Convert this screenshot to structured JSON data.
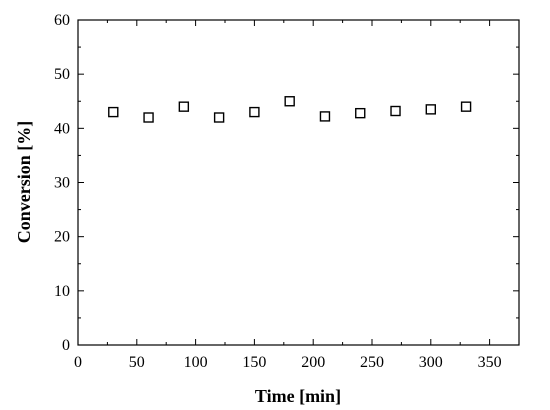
{
  "chart_data": {
    "type": "scatter",
    "title": "",
    "xlabel": "Time [min]",
    "ylabel": "Conversion [%]",
    "xlim": [
      0,
      375
    ],
    "ylim": [
      0,
      60
    ],
    "x_ticks": [
      0,
      50,
      100,
      150,
      200,
      250,
      300,
      350
    ],
    "y_ticks": [
      0,
      10,
      20,
      30,
      40,
      50,
      60
    ],
    "grid": false,
    "marker": "open-square",
    "marker_color": "#000000",
    "series": [
      {
        "x": [
          30,
          60,
          90,
          120,
          150,
          180,
          210,
          240,
          270,
          300,
          330
        ],
        "y": [
          43.0,
          42.0,
          44.0,
          42.0,
          43.0,
          45.0,
          42.2,
          42.8,
          43.2,
          43.5,
          44.0
        ]
      }
    ]
  }
}
